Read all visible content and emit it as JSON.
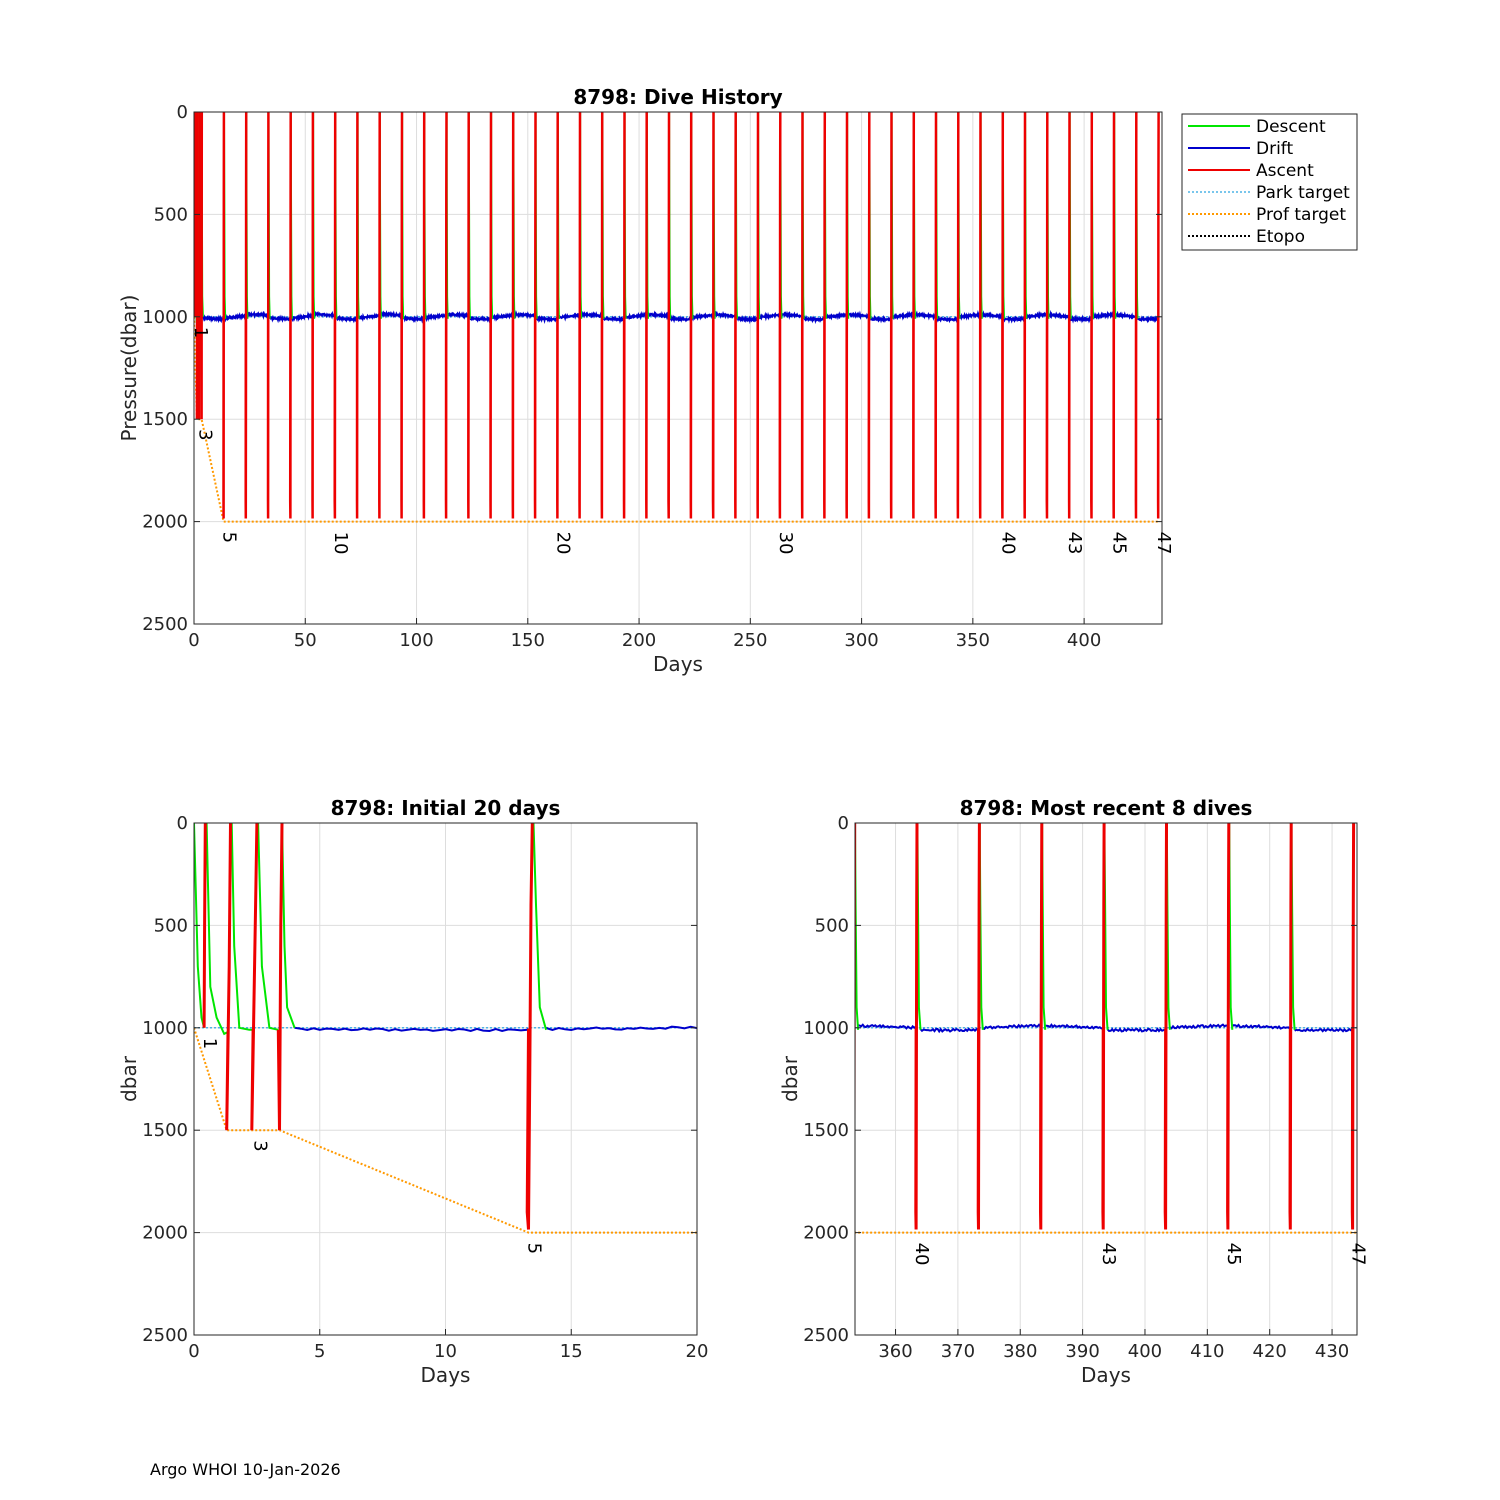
{
  "footer": "Argo WHOI 10-Jan-2026",
  "colors": {
    "descent": "#00e600",
    "drift": "#0000cc",
    "ascent": "#ee0000",
    "park": "#4db3e6",
    "prof": "#ff9900",
    "etopo": "#000000",
    "grid": "#dddddd"
  },
  "legend": [
    "Descent",
    "Drift",
    "Ascent",
    "Park target",
    "Prof target",
    "Etopo"
  ],
  "chart_data": [
    {
      "id": "main",
      "type": "line",
      "title": "8798: Dive History",
      "xlabel": "Days",
      "ylabel": "Pressure(dbar)",
      "xlim": [
        0,
        435
      ],
      "ylim": [
        0,
        2500
      ],
      "y_reversed": true,
      "xticks": [
        0,
        50,
        100,
        150,
        200,
        250,
        300,
        350,
        400
      ],
      "yticks": [
        0,
        500,
        1000,
        1500,
        2000,
        2500
      ],
      "grid": true,
      "legend_position": "outside-right",
      "park_target_dbar": 1000,
      "prof_target": [
        [
          0,
          1000
        ],
        [
          1.3,
          1500
        ],
        [
          3.4,
          1500
        ],
        [
          13.3,
          2000
        ],
        [
          434,
          2000
        ]
      ],
      "cycles": [
        {
          "n": 1,
          "x": 0.4,
          "depth": 1000
        },
        {
          "n": 3,
          "x": 2.4,
          "depth": 1500
        },
        {
          "n": 5,
          "x": 13.3,
          "depth": 2000
        },
        {
          "n": 10,
          "x": 63.3,
          "depth": 2000
        },
        {
          "n": 20,
          "x": 163.3,
          "depth": 2000
        },
        {
          "n": 30,
          "x": 263.3,
          "depth": 2000
        },
        {
          "n": 40,
          "x": 363.3,
          "depth": 2000
        },
        {
          "n": 43,
          "x": 393.3,
          "depth": 2000
        },
        {
          "n": 45,
          "x": 413.3,
          "depth": 2000
        },
        {
          "n": 47,
          "x": 433.3,
          "depth": 2000
        }
      ]
    },
    {
      "id": "initial",
      "type": "line",
      "title": "8798: Initial 20 days",
      "xlabel": "Days",
      "ylabel": "dbar",
      "xlim": [
        0,
        20
      ],
      "ylim": [
        0,
        2500
      ],
      "y_reversed": true,
      "xticks": [
        0,
        5,
        10,
        15,
        20
      ],
      "yticks": [
        0,
        500,
        1000,
        1500,
        2000,
        2500
      ],
      "grid": true,
      "cycles": [
        {
          "n": 1,
          "x": 0.4,
          "depth": 1000
        },
        {
          "n": 3,
          "x": 2.4,
          "depth": 1500
        },
        {
          "n": 5,
          "x": 13.3,
          "depth": 2000
        }
      ]
    },
    {
      "id": "recent",
      "type": "line",
      "title": "8798: Most recent 8 dives",
      "xlabel": "Days",
      "ylabel": "dbar",
      "xlim": [
        353.5,
        434
      ],
      "ylim": [
        0,
        2500
      ],
      "y_reversed": true,
      "xticks": [
        360,
        370,
        380,
        390,
        400,
        410,
        420,
        430
      ],
      "yticks": [
        0,
        500,
        1000,
        1500,
        2000,
        2500
      ],
      "grid": true,
      "cycles": [
        {
          "n": 40,
          "x": 363.3,
          "depth": 2000
        },
        {
          "n": 43,
          "x": 393.3,
          "depth": 2000
        },
        {
          "n": 45,
          "x": 413.3,
          "depth": 2000
        },
        {
          "n": 47,
          "x": 433.3,
          "depth": 2000
        }
      ]
    }
  ]
}
